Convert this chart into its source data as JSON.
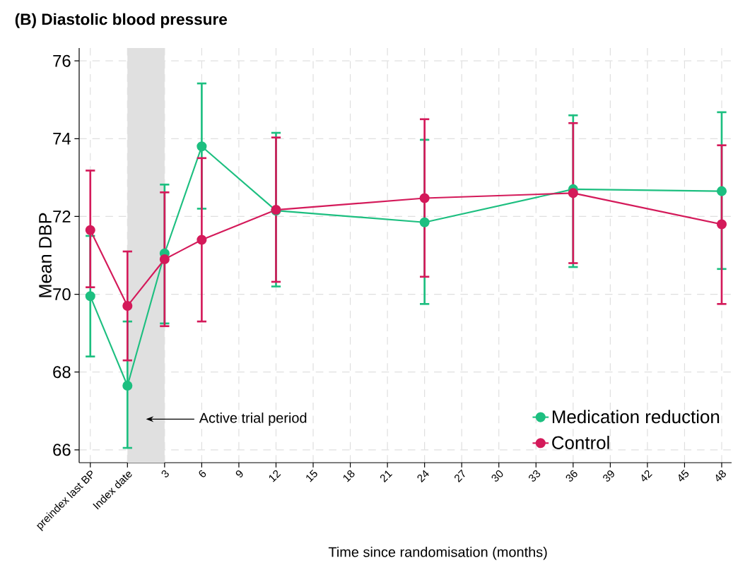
{
  "chart_data": {
    "type": "line",
    "title": "(B) Diastolic blood pressure",
    "xlabel": "Time since randomisation (months)",
    "ylabel": "Mean DBP",
    "x": [
      -3,
      0,
      3,
      6,
      12,
      24,
      36,
      48
    ],
    "series": [
      {
        "name": "Medication reduction",
        "color": "#1dbf80",
        "values": [
          69.95,
          67.65,
          71.05,
          73.8,
          72.15,
          71.85,
          72.7,
          72.65
        ],
        "errors": [
          [
            68.4,
            71.5
          ],
          [
            66.05,
            69.3
          ],
          [
            69.25,
            72.82
          ],
          [
            72.2,
            75.42
          ],
          [
            70.2,
            74.15
          ],
          [
            69.75,
            73.97
          ],
          [
            70.7,
            74.6
          ],
          [
            70.65,
            74.68
          ]
        ]
      },
      {
        "name": "Control",
        "color": "#d41a5a",
        "values": [
          71.65,
          69.7,
          70.9,
          71.4,
          72.17,
          72.47,
          72.6,
          71.8
        ],
        "errors": [
          [
            70.18,
            73.18
          ],
          [
            68.3,
            71.1
          ],
          [
            69.18,
            72.62
          ],
          [
            69.3,
            73.5
          ],
          [
            70.32,
            74.03
          ],
          [
            70.45,
            74.5
          ],
          [
            70.8,
            74.4
          ],
          [
            69.75,
            73.83
          ]
        ]
      }
    ],
    "xlim": [
      -3.9,
      48.8
    ],
    "ylim": [
      65.67,
      76.33
    ],
    "xticks": [
      {
        "value": -3,
        "label": "preindex last BP"
      },
      {
        "value": 0,
        "label": "Index date"
      },
      3,
      6,
      9,
      12,
      15,
      18,
      21,
      24,
      27,
      30,
      33,
      36,
      39,
      42,
      45,
      48
    ],
    "yticks": [
      66,
      68,
      70,
      72,
      74,
      76
    ],
    "bands": [
      {
        "axis": "x",
        "from": 0,
        "to": 3,
        "label": "Active trial period",
        "color": "#e0e0e0"
      }
    ],
    "grid": true,
    "legend": "bottom right",
    "marker": "circle",
    "line_style": "solid"
  }
}
